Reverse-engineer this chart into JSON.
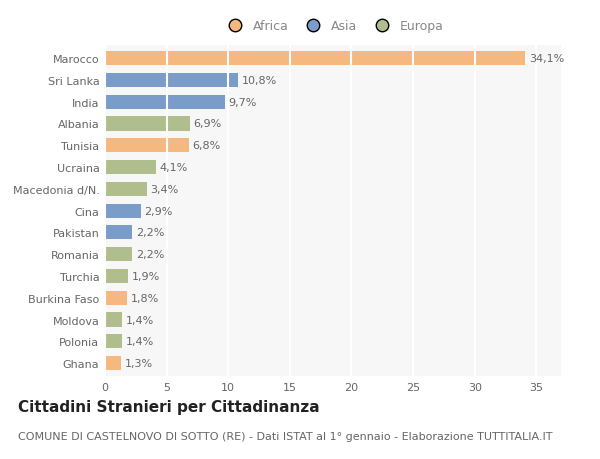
{
  "countries": [
    "Marocco",
    "Sri Lanka",
    "India",
    "Albania",
    "Tunisia",
    "Ucraina",
    "Macedonia d/N.",
    "Cina",
    "Pakistan",
    "Romania",
    "Turchia",
    "Burkina Faso",
    "Moldova",
    "Polonia",
    "Ghana"
  ],
  "values": [
    34.1,
    10.8,
    9.7,
    6.9,
    6.8,
    4.1,
    3.4,
    2.9,
    2.2,
    2.2,
    1.9,
    1.8,
    1.4,
    1.4,
    1.3
  ],
  "continents": [
    "Africa",
    "Asia",
    "Asia",
    "Europa",
    "Africa",
    "Europa",
    "Europa",
    "Asia",
    "Asia",
    "Europa",
    "Europa",
    "Africa",
    "Europa",
    "Europa",
    "Africa"
  ],
  "colors": {
    "Africa": "#F5B97F",
    "Asia": "#7A9CC8",
    "Europa": "#AFBE8C"
  },
  "legend_labels": [
    "Africa",
    "Asia",
    "Europa"
  ],
  "title": "Cittadini Stranieri per Cittadinanza",
  "subtitle": "COMUNE DI CASTELNOVO DI SOTTO (RE) - Dati ISTAT al 1° gennaio - Elaborazione TUTTITALIA.IT",
  "xlim": [
    0,
    37
  ],
  "xticks": [
    0,
    5,
    10,
    15,
    20,
    25,
    30,
    35
  ],
  "bg_color": "#ffffff",
  "plot_bg_color": "#f7f7f7",
  "grid_color": "#ffffff",
  "title_fontsize": 11,
  "subtitle_fontsize": 8,
  "label_fontsize": 8,
  "tick_fontsize": 8,
  "legend_fontsize": 9
}
